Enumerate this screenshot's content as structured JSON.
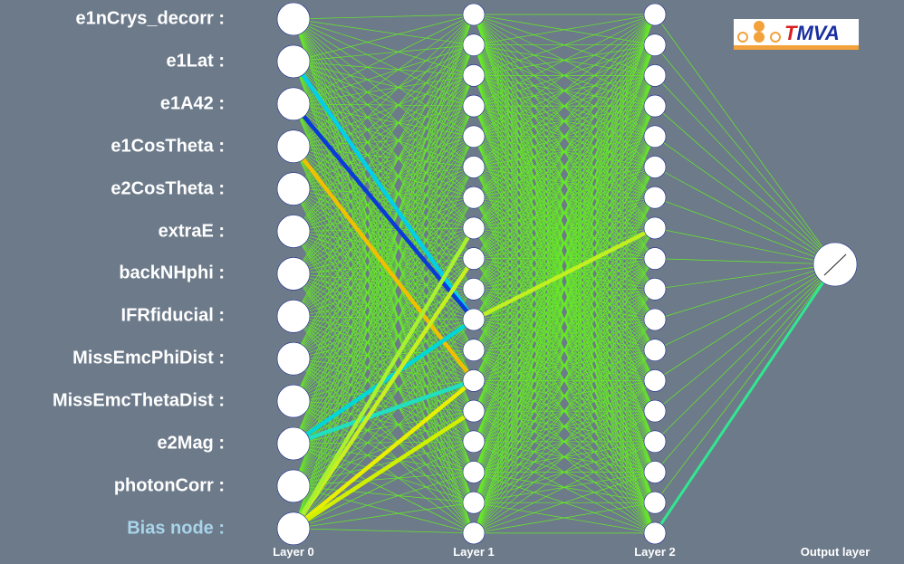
{
  "diagram": {
    "input_labels": [
      "e1nCrys_decorr :",
      "e1Lat :",
      "e1A42 :",
      "e1CosTheta :",
      "e2CosTheta :",
      "extraE :",
      "backNHphi :",
      "IFRfiducial :",
      "MissEmcPhiDist :",
      "MissEmcThetaDist :",
      "e2Mag :",
      "photonCorr :",
      "Bias node :"
    ],
    "layer_labels": [
      "Layer 0",
      "Layer 1",
      "Layer 2",
      "Output layer"
    ],
    "layer_sizes": [
      13,
      18,
      18,
      1
    ],
    "logo": {
      "prefix": "T",
      "rest": "MVA"
    },
    "colors": {
      "background": "#6c7a8a",
      "node": "#ffffff",
      "default_edge": "#66ee22",
      "bias_label": "#a9d4e9",
      "logo_orange": "#f3a13a",
      "logo_blue": "#1a2fa0",
      "logo_red": "#d81e1e"
    },
    "highlight_edges": [
      {
        "from_layer": 0,
        "from": 1,
        "to": 10,
        "color": "#00d0e8"
      },
      {
        "from_layer": 0,
        "from": 2,
        "to": 10,
        "color": "#0a3ad8"
      },
      {
        "from_layer": 0,
        "from": 3,
        "to": 12,
        "color": "#f0c000"
      },
      {
        "from_layer": 0,
        "from": 10,
        "to": 10,
        "color": "#00d8d8"
      },
      {
        "from_layer": 0,
        "from": 10,
        "to": 12,
        "color": "#20e0c0"
      },
      {
        "from_layer": 0,
        "from": 12,
        "to": 8,
        "color": "#c8f020"
      },
      {
        "from_layer": 0,
        "from": 12,
        "to": 12,
        "color": "#e8f000"
      },
      {
        "from_layer": 0,
        "from": 12,
        "to": 13,
        "color": "#d0f000"
      },
      {
        "from_layer": 0,
        "from": 12,
        "to": 7,
        "color": "#a8f030"
      },
      {
        "from_layer": 1,
        "from": 10,
        "to": 7,
        "color": "#c0f020"
      },
      {
        "from_layer": 2,
        "from": 17,
        "to": 0,
        "color": "#30e890"
      }
    ]
  }
}
